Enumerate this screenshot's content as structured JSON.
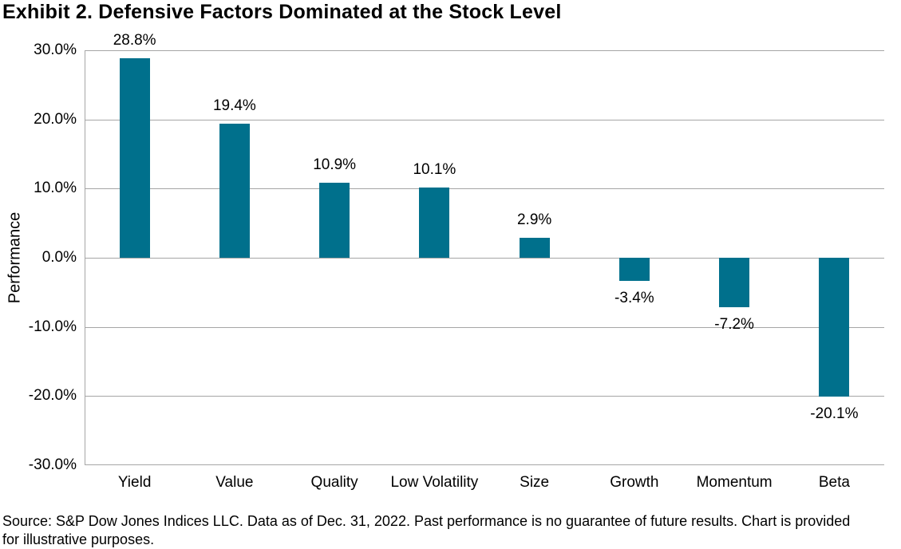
{
  "title": "Exhibit 2. Defensive Factors Dominated at the Stock Level",
  "chart_data": {
    "type": "bar",
    "categories": [
      "Yield",
      "Value",
      "Quality",
      "Low Volatility",
      "Size",
      "Growth",
      "Momentum",
      "Beta"
    ],
    "values": [
      28.8,
      19.4,
      10.9,
      10.1,
      2.9,
      -3.4,
      -7.2,
      -20.1
    ],
    "bar_labels": [
      "28.8%",
      "19.4%",
      "10.9%",
      "10.1%",
      "2.9%",
      "-3.4%",
      "-7.2%",
      "-20.1%"
    ],
    "ylabel": "Performance",
    "xlabel": "",
    "ylim": [
      -30,
      30
    ],
    "ytick_step": 10,
    "ytick_labels": [
      "30.0%",
      "20.0%",
      "10.0%",
      "0.0%",
      "-10.0%",
      "-20.0%",
      "-30.0%"
    ],
    "grid": "horizontal",
    "legend": "none",
    "bar_color": "#00708C",
    "gridline_color": "#A6A6A6",
    "label_color": "#000000"
  },
  "source_note": {
    "lines": [
      "Source: S&P Dow Jones Indices LLC. Data as of Dec. 31, 2022. Past performance is no guarantee of future results. Chart is provided",
      "for illustrative purposes."
    ]
  }
}
